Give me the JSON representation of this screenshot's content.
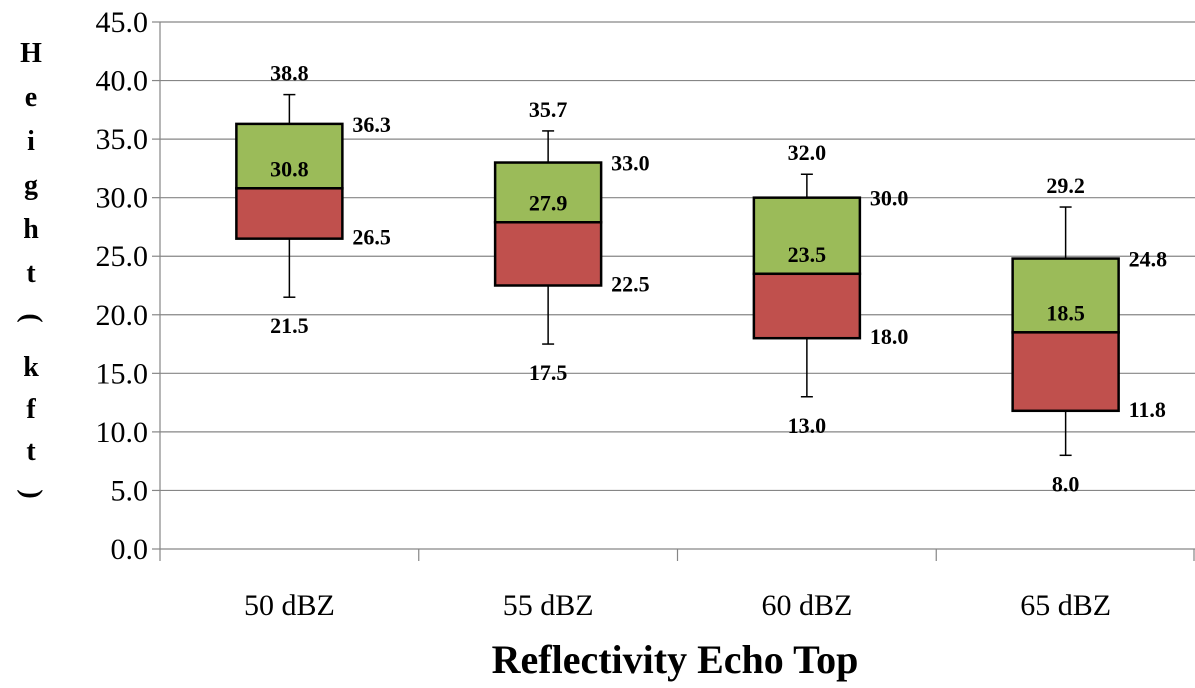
{
  "chart_data": {
    "type": "box",
    "categories": [
      "50 dBZ",
      "55 dBZ",
      "60 dBZ",
      "65 dBZ"
    ],
    "boxes": [
      {
        "min": 21.5,
        "q1": 26.5,
        "median": 30.8,
        "q3": 36.3,
        "max": 38.8,
        "labels": {
          "min": "21.5",
          "q1": "26.5",
          "median": "30.8",
          "q3": "36.3",
          "max": "38.8"
        }
      },
      {
        "min": 17.5,
        "q1": 22.5,
        "median": 27.9,
        "q3": 33.0,
        "max": 35.7,
        "labels": {
          "min": "17.5",
          "q1": "22.5",
          "median": "27.9",
          "q3": "33.0",
          "max": "35.7"
        }
      },
      {
        "min": 13.0,
        "q1": 18.0,
        "median": 23.5,
        "q3": 30.0,
        "max": 32.0,
        "labels": {
          "min": "13.0",
          "q1": "18.0",
          "median": "23.5",
          "q3": "30.0",
          "max": "32.0"
        }
      },
      {
        "min": 8.0,
        "q1": 11.8,
        "median": 18.5,
        "q3": 24.8,
        "max": 29.2,
        "labels": {
          "min": "8.0",
          "q1": "11.8",
          "median": "18.5",
          "q3": "24.8",
          "max": "29.2"
        }
      }
    ],
    "xlabel": "Reflectivity Echo Top",
    "ylabel": "Height (kft)",
    "ylim": [
      0,
      45
    ],
    "yticks": [
      0,
      5,
      10,
      15,
      20,
      25,
      30,
      35,
      40,
      45
    ],
    "ytick_labels": [
      "0.0",
      "5.0",
      "10.0",
      "15.0",
      "20.0",
      "25.0",
      "30.0",
      "35.0",
      "40.0",
      "45.0"
    ],
    "grid": true,
    "colors": {
      "upper_box": "#9bbb59",
      "lower_box": "#c0504d",
      "grid": "#868686",
      "whisker": "#000000"
    }
  }
}
